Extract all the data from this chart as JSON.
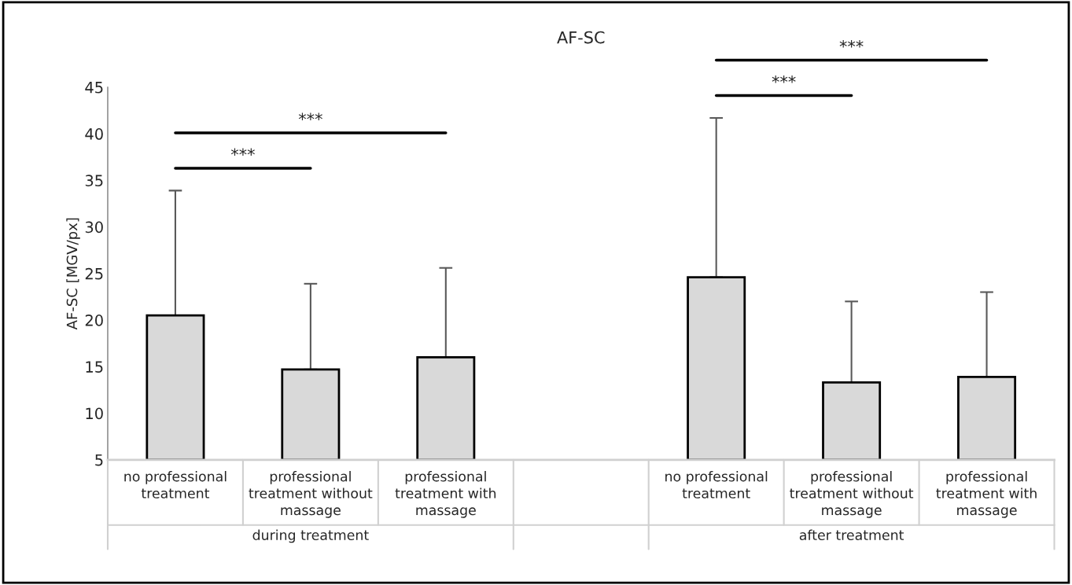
{
  "chart_data": {
    "type": "bar",
    "title": "AF-SC",
    "ylabel": "AF-SC [MGV/px]",
    "categories": [
      "no professional treatment",
      "professional treatment without massage",
      "professional treatment with massage",
      null,
      "no professional treatment",
      "professional treatment without massage",
      "professional treatment with massage"
    ],
    "values": [
      20.5,
      14.7,
      16.0,
      null,
      24.6,
      13.3,
      13.9
    ],
    "errors": [
      [
        20.5,
        33.9
      ],
      [
        14.7,
        23.9
      ],
      [
        16.0,
        25.6
      ],
      null,
      [
        24.6,
        41.7
      ],
      [
        13.3,
        22.0
      ],
      [
        13.9,
        23.0
      ]
    ],
    "color": "#d9d9d9",
    "ylim": [
      5,
      45
    ],
    "yticks": [
      5,
      10,
      15,
      20,
      25,
      30,
      35,
      40,
      45
    ],
    "grid": false,
    "legend": false,
    "annotations": [
      "***",
      "***",
      "***",
      "***",
      "during treatment",
      "after treatment"
    ]
  }
}
